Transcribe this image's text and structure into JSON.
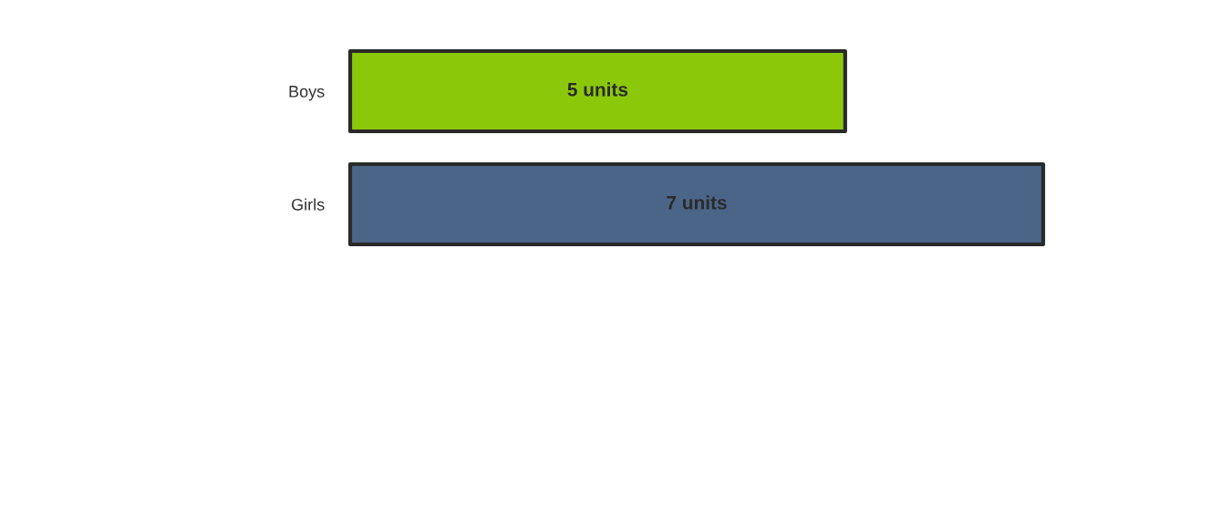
{
  "chart_data": {
    "type": "bar",
    "orientation": "horizontal",
    "categories": [
      "Boys",
      "Girls"
    ],
    "values": [
      5,
      7
    ],
    "colors": [
      "#8bc80a",
      "#4a6588"
    ],
    "value_labels": [
      "5 units",
      "7 units"
    ],
    "grid": false,
    "legend": false
  }
}
